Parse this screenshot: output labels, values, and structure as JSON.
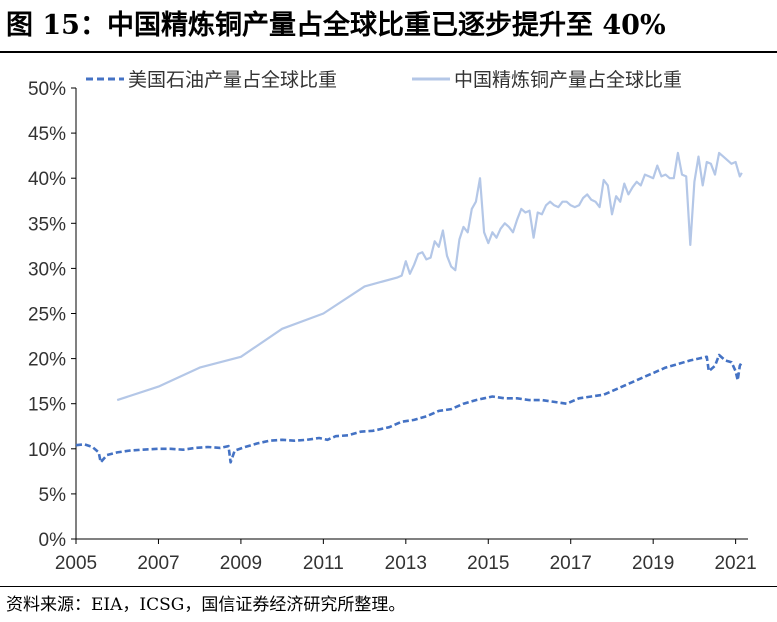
{
  "title": "图 15：中国精炼铜产量占全球比重已逐步提升至 40%",
  "source": "资料来源：EIA，ICSG，国信证券经济研究所整理。",
  "chart_data": {
    "type": "line",
    "ylim": [
      0,
      50
    ],
    "y_ticks": [
      "0%",
      "5%",
      "10%",
      "15%",
      "20%",
      "25%",
      "30%",
      "35%",
      "40%",
      "45%",
      "50%"
    ],
    "xlim": [
      2005,
      2021.3
    ],
    "x_ticks": [
      "2005",
      "2007",
      "2009",
      "2011",
      "2013",
      "2015",
      "2017",
      "2019",
      "2021"
    ],
    "grid": false,
    "legend_position": "top",
    "series": [
      {
        "name": "美国石油产量占全球比重",
        "color": "#4472C4",
        "line_style": "dashed",
        "x": [
          2005.0,
          2005.2,
          2005.4,
          2005.55,
          2005.6,
          2005.75,
          2006.0,
          2006.3,
          2006.6,
          2007.0,
          2007.3,
          2007.6,
          2007.9,
          2008.2,
          2008.5,
          2008.7,
          2008.75,
          2008.85,
          2009.1,
          2009.4,
          2009.7,
          2010.0,
          2010.3,
          2010.6,
          2010.9,
          2011.1,
          2011.3,
          2011.6,
          2011.9,
          2012.2,
          2012.6,
          2012.9,
          2013.2,
          2013.5,
          2013.8,
          2014.1,
          2014.4,
          2014.7,
          2014.9,
          2015.1,
          2015.4,
          2015.7,
          2016.0,
          2016.3,
          2016.6,
          2016.9,
          2017.2,
          2017.5,
          2017.8,
          2018.1,
          2018.4,
          2018.7,
          2019.0,
          2019.3,
          2019.6,
          2019.9,
          2020.1,
          2020.3,
          2020.35,
          2020.5,
          2020.6,
          2020.75,
          2020.9,
          2021.0,
          2021.05,
          2021.1,
          2021.15
        ],
        "values": [
          10.4,
          10.5,
          10.2,
          9.6,
          8.5,
          9.3,
          9.6,
          9.8,
          9.9,
          10.0,
          10.0,
          9.9,
          10.1,
          10.2,
          10.1,
          10.3,
          8.5,
          9.8,
          10.2,
          10.6,
          10.9,
          11.0,
          10.9,
          11.0,
          11.2,
          11.0,
          11.4,
          11.5,
          11.9,
          12.0,
          12.4,
          13.0,
          13.2,
          13.6,
          14.2,
          14.4,
          15.0,
          15.4,
          15.6,
          15.8,
          15.6,
          15.6,
          15.4,
          15.4,
          15.2,
          15.0,
          15.6,
          15.8,
          16.0,
          16.6,
          17.2,
          17.8,
          18.4,
          19.0,
          19.4,
          19.8,
          20.0,
          20.2,
          18.6,
          19.2,
          20.4,
          19.8,
          19.6,
          18.6,
          17.6,
          19.2,
          19.6
        ]
      },
      {
        "name": "中国精炼铜产量占全球比重",
        "color": "#B4C7E7",
        "line_style": "solid",
        "x": [
          2006.0,
          2007.0,
          2008.0,
          2009.0,
          2010.0,
          2011.0,
          2012.0,
          2012.8,
          2012.9,
          2013.0,
          2013.1,
          2013.2,
          2013.3,
          2013.4,
          2013.5,
          2013.6,
          2013.7,
          2013.8,
          2013.9,
          2014.0,
          2014.1,
          2014.2,
          2014.3,
          2014.4,
          2014.5,
          2014.6,
          2014.7,
          2014.8,
          2014.9,
          2015.0,
          2015.1,
          2015.2,
          2015.3,
          2015.4,
          2015.5,
          2015.6,
          2015.7,
          2015.8,
          2015.9,
          2016.0,
          2016.1,
          2016.2,
          2016.3,
          2016.4,
          2016.5,
          2016.6,
          2016.7,
          2016.8,
          2016.9,
          2017.0,
          2017.1,
          2017.2,
          2017.3,
          2017.4,
          2017.5,
          2017.6,
          2017.7,
          2017.8,
          2017.9,
          2018.0,
          2018.1,
          2018.2,
          2018.3,
          2018.4,
          2018.5,
          2018.6,
          2018.7,
          2018.8,
          2018.9,
          2019.0,
          2019.1,
          2019.2,
          2019.3,
          2019.4,
          2019.5,
          2019.6,
          2019.7,
          2019.8,
          2019.9,
          2020.0,
          2020.1,
          2020.2,
          2020.3,
          2020.4,
          2020.5,
          2020.6,
          2020.7,
          2020.8,
          2020.9,
          2021.0,
          2021.1,
          2021.15
        ],
        "values": [
          15.4,
          16.9,
          19.0,
          20.2,
          23.3,
          25.0,
          28.0,
          29.0,
          29.2,
          30.8,
          29.4,
          30.4,
          31.6,
          31.8,
          31.0,
          31.2,
          33.0,
          32.4,
          34.2,
          31.4,
          30.2,
          29.8,
          33.2,
          34.6,
          34.0,
          36.6,
          37.4,
          40.0,
          34.0,
          32.8,
          34.0,
          33.4,
          34.4,
          35.0,
          34.6,
          34.0,
          35.4,
          36.6,
          36.2,
          36.4,
          33.4,
          36.2,
          36.0,
          37.0,
          37.4,
          37.0,
          36.8,
          37.4,
          37.4,
          37.0,
          36.8,
          37.0,
          37.8,
          38.2,
          37.6,
          37.4,
          36.8,
          39.8,
          39.2,
          36.0,
          38.0,
          37.4,
          39.4,
          38.2,
          39.0,
          39.6,
          39.2,
          40.4,
          40.2,
          40.0,
          41.4,
          40.2,
          40.4,
          40.0,
          40.0,
          42.8,
          40.4,
          40.2,
          32.6,
          39.6,
          42.4,
          39.2,
          41.8,
          41.6,
          40.4,
          42.8,
          42.4,
          42.0,
          41.6,
          41.8,
          40.2,
          40.6
        ]
      }
    ]
  }
}
